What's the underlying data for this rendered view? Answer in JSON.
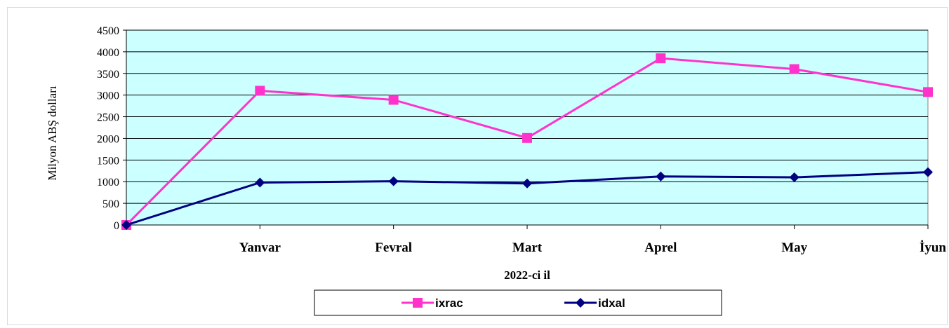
{
  "chart_data": {
    "type": "line",
    "categories": [
      "",
      "Yanvar",
      "Fevral",
      "Mart",
      "Aprel",
      "May",
      "İyun"
    ],
    "series": [
      {
        "name": "ixrac",
        "values": [
          0,
          3100,
          2890,
          2010,
          3850,
          3600,
          3070
        ],
        "color": "#ff33cc",
        "marker": "square"
      },
      {
        "name": "idxal",
        "values": [
          0,
          980,
          1010,
          960,
          1120,
          1100,
          1220
        ],
        "color": "#000080",
        "marker": "diamond"
      }
    ],
    "ylabel": "Milyon ABŞ dolları",
    "xlabel": "2022-ci il",
    "ylim": [
      0,
      4500
    ],
    "yticks": [
      0,
      500,
      1000,
      1500,
      2000,
      2500,
      3000,
      3500,
      4000,
      4500
    ],
    "grid": true,
    "plot_background": "#ccffff",
    "legend_position": "bottom"
  }
}
